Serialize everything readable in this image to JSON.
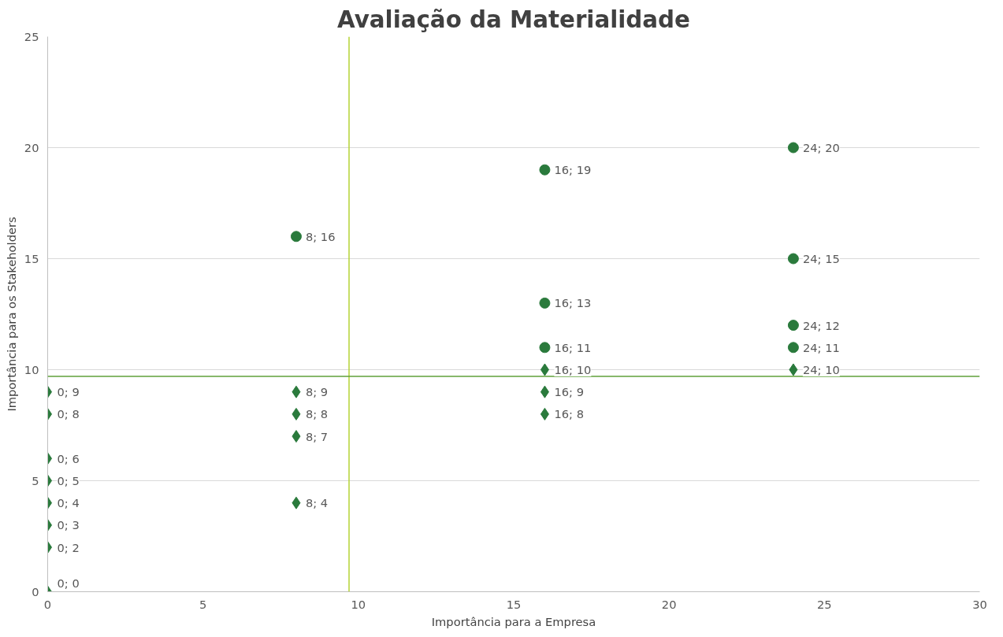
{
  "chart_data": {
    "type": "scatter",
    "title": "Avaliação da Materialidade",
    "xlabel": "Importância para a Empresa",
    "ylabel": "Importância para os Stakeholders",
    "xlim": [
      0,
      30
    ],
    "xticks": [
      0,
      5,
      10,
      15,
      20,
      25,
      30
    ],
    "ylim": [
      0,
      25
    ],
    "yticks": [
      0,
      5,
      10,
      15,
      20,
      25
    ],
    "grid": "y",
    "series": [
      {
        "color": "#2a7a3c",
        "marker": "circle",
        "x": [
          8,
          16,
          16,
          16,
          24,
          24,
          24,
          24
        ],
        "values": [
          16,
          19,
          13,
          11,
          20,
          15,
          12,
          11
        ],
        "value_labels": [
          "8; 16",
          "16; 19",
          "16; 13",
          "16; 11",
          "24; 20",
          "24; 15",
          "24; 12",
          "24; 11"
        ]
      },
      {
        "color": "#2a7a3c",
        "marker": "diamond",
        "x": [
          0,
          0,
          0,
          0,
          0,
          0,
          0,
          0,
          8,
          8,
          8,
          8,
          16,
          16,
          16,
          24
        ],
        "values": [
          9,
          8,
          6,
          5,
          4,
          3,
          2,
          0,
          9,
          8,
          7,
          4,
          10,
          9,
          8,
          10
        ],
        "value_labels": [
          "0; 9",
          "0; 8",
          "0; 6",
          "0; 5",
          "0; 4",
          "0; 3",
          "0; 2",
          "0; 0",
          "8; 9",
          "8; 8",
          "8; 7",
          "8; 4",
          "16; 10",
          "16; 9",
          "16; 8",
          "24; 10"
        ]
      }
    ],
    "ref_lines": [
      {
        "axis": "x",
        "value": 9.7,
        "color": "#b5d334"
      },
      {
        "axis": "y",
        "value": 9.7,
        "color": "#5fa03a"
      }
    ]
  }
}
